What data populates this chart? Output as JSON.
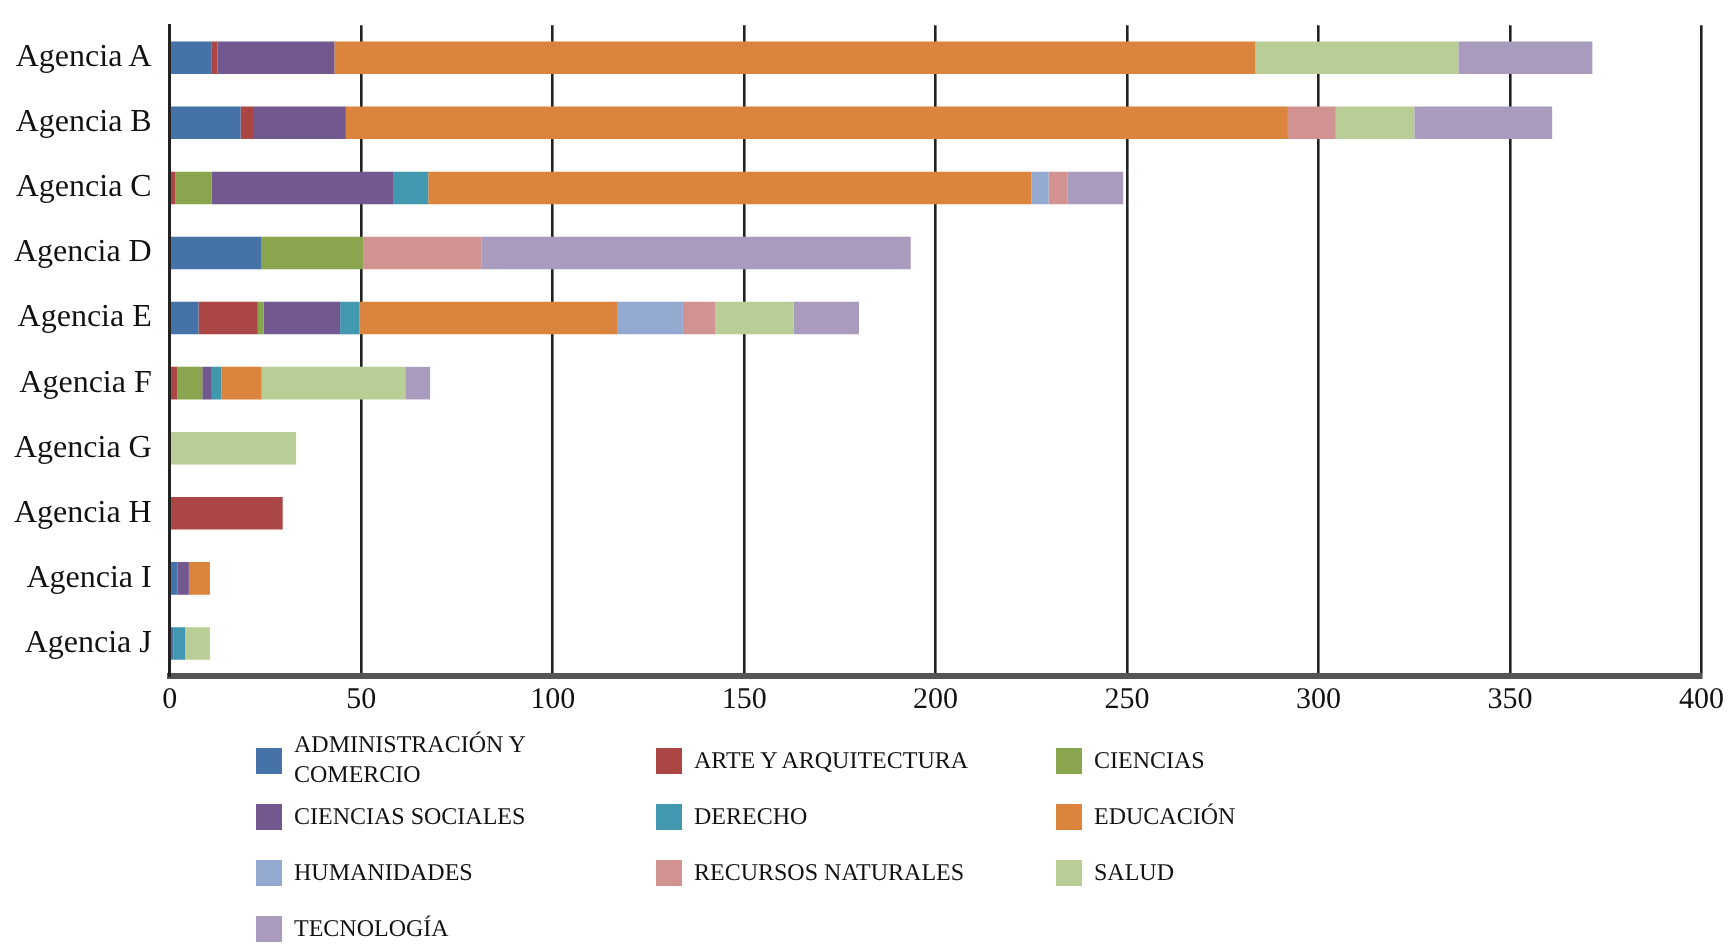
{
  "chart_data": {
    "type": "bar",
    "orientation": "horizontal",
    "stacked": true,
    "categories": [
      "Agencia A",
      "Agencia B",
      "Agencia C",
      "Agencia D",
      "Agencia E",
      "Agencia F",
      "Agencia G",
      "Agencia H",
      "Agencia I",
      "Agencia J"
    ],
    "series": [
      {
        "name": "ADMINISTRACIÓN Y COMERCIO",
        "color": "#4573a7",
        "values": [
          11,
          18.5,
          0,
          24,
          7.5,
          0,
          0,
          0,
          2,
          1
        ]
      },
      {
        "name": "ARTE Y ARQUITECTURA",
        "color": "#aa4643",
        "values": [
          1.5,
          3.5,
          1.5,
          0,
          15.5,
          2,
          0,
          29.5,
          0,
          0
        ]
      },
      {
        "name": "CIENCIAS",
        "color": "#89a54e",
        "values": [
          0,
          0,
          9.5,
          26.5,
          1.5,
          6.5,
          0,
          0,
          0,
          0
        ]
      },
      {
        "name": "CIENCIAS SOCIALES",
        "color": "#71588f",
        "values": [
          30.5,
          24,
          47.5,
          0,
          20,
          2.5,
          0,
          0,
          3,
          0
        ]
      },
      {
        "name": "DERECHO",
        "color": "#4198af",
        "values": [
          0,
          0,
          9,
          0,
          5,
          2.5,
          0,
          0,
          0,
          3
        ]
      },
      {
        "name": "EDUCACIÓN",
        "color": "#db843d",
        "values": [
          240.5,
          246,
          157.5,
          0,
          67.5,
          10.5,
          0,
          0,
          5.5,
          0
        ]
      },
      {
        "name": "HUMANIDADES",
        "color": "#93a9cf",
        "values": [
          0,
          0,
          4.5,
          0,
          17,
          0,
          0,
          0,
          0,
          0
        ]
      },
      {
        "name": "RECURSOS NATURALES",
        "color": "#d19392",
        "values": [
          0,
          12.5,
          5,
          31,
          8.5,
          0,
          0,
          0,
          0,
          0
        ]
      },
      {
        "name": "SALUD",
        "color": "#b9cd96",
        "values": [
          53,
          20.5,
          0,
          0,
          20.5,
          37.5,
          33,
          0,
          0,
          6.5
        ]
      },
      {
        "name": "TECNOLOGÍA",
        "color": "#a99bbd",
        "values": [
          35,
          36,
          14.5,
          112,
          17,
          6.5,
          0,
          0,
          0,
          0
        ]
      }
    ],
    "xlim": [
      0,
      400
    ],
    "xticks": [
      0,
      50,
      100,
      150,
      200,
      250,
      300,
      350,
      400
    ],
    "grid": "x",
    "legend": "bottom"
  }
}
